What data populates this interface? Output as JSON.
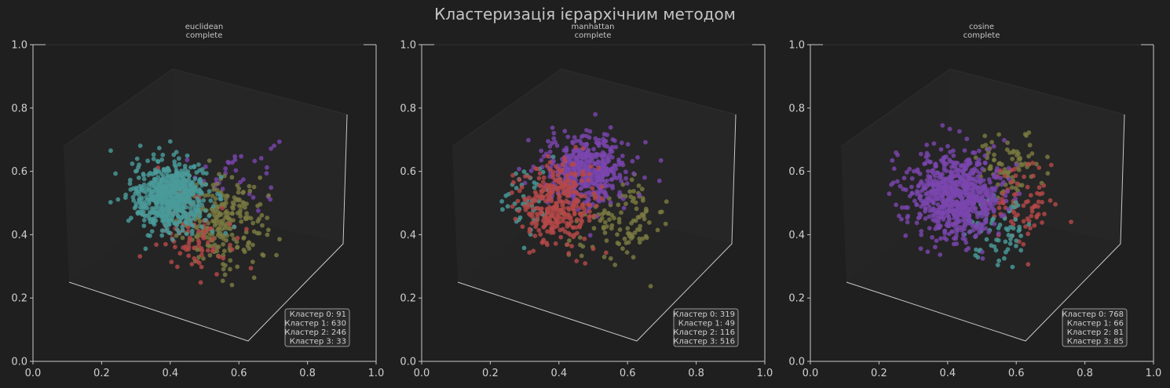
{
  "title": "Кластеризація ієрархічним методом",
  "colors": {
    "background": "#1f1f1f",
    "cluster_0": "#b44848",
    "cluster_1": "#4a9a9a",
    "cluster_2": "#7a7a42",
    "cluster_3": "#7a45ad"
  },
  "chart_data": [
    {
      "type": "scatter",
      "projection": "3d",
      "metric": "euclidean",
      "linkage": "complete",
      "xlim": [
        0,
        1
      ],
      "ylim": [
        0,
        1
      ],
      "xticks": [
        "0.0",
        "0.2",
        "0.4",
        "0.6",
        "0.8",
        "1.0"
      ],
      "yticks": [
        "0.0",
        "0.2",
        "0.4",
        "0.6",
        "0.8",
        "1.0"
      ],
      "legend_placement": "lower-right",
      "series": [
        {
          "name": "Кластер 0: 91",
          "count": 91,
          "color": "#b44848"
        },
        {
          "name": "Кластер 1: 630",
          "count": 630,
          "color": "#4a9a9a"
        },
        {
          "name": "Кластер 2: 246",
          "count": 246,
          "color": "#7a7a42"
        },
        {
          "name": "Кластер 3: 33",
          "count": 33,
          "color": "#7a45ad"
        }
      ]
    },
    {
      "type": "scatter",
      "projection": "3d",
      "metric": "manhattan",
      "linkage": "complete",
      "xlim": [
        0,
        1
      ],
      "ylim": [
        0,
        1
      ],
      "xticks": [
        "0.0",
        "0.2",
        "0.4",
        "0.6",
        "0.8",
        "1.0"
      ],
      "yticks": [
        "0.0",
        "0.2",
        "0.4",
        "0.6",
        "0.8",
        "1.0"
      ],
      "legend_placement": "lower-right",
      "series": [
        {
          "name": "Кластер 0: 319",
          "count": 319,
          "color": "#b44848"
        },
        {
          "name": "Кластер 1: 49",
          "count": 49,
          "color": "#4a9a9a"
        },
        {
          "name": "Кластер 2: 116",
          "count": 116,
          "color": "#7a7a42"
        },
        {
          "name": "Кластер 3: 516",
          "count": 516,
          "color": "#7a45ad"
        }
      ]
    },
    {
      "type": "scatter",
      "projection": "3d",
      "metric": "cosine",
      "linkage": "complete",
      "xlim": [
        0,
        1
      ],
      "ylim": [
        0,
        1
      ],
      "xticks": [
        "0.0",
        "0.2",
        "0.4",
        "0.6",
        "0.8",
        "1.0"
      ],
      "yticks": [
        "0.0",
        "0.2",
        "0.4",
        "0.6",
        "0.8",
        "1.0"
      ],
      "legend_placement": "lower-right",
      "series": [
        {
          "name": "Кластер 0: 768",
          "count": 768,
          "color": "#7a45ad"
        },
        {
          "name": "Кластер 1: 66",
          "count": 66,
          "color": "#4a9a9a"
        },
        {
          "name": "Кластер 2: 81",
          "count": 81,
          "color": "#b44848"
        },
        {
          "name": "Кластер 3: 85",
          "count": 85,
          "color": "#7a7a42"
        }
      ]
    }
  ]
}
